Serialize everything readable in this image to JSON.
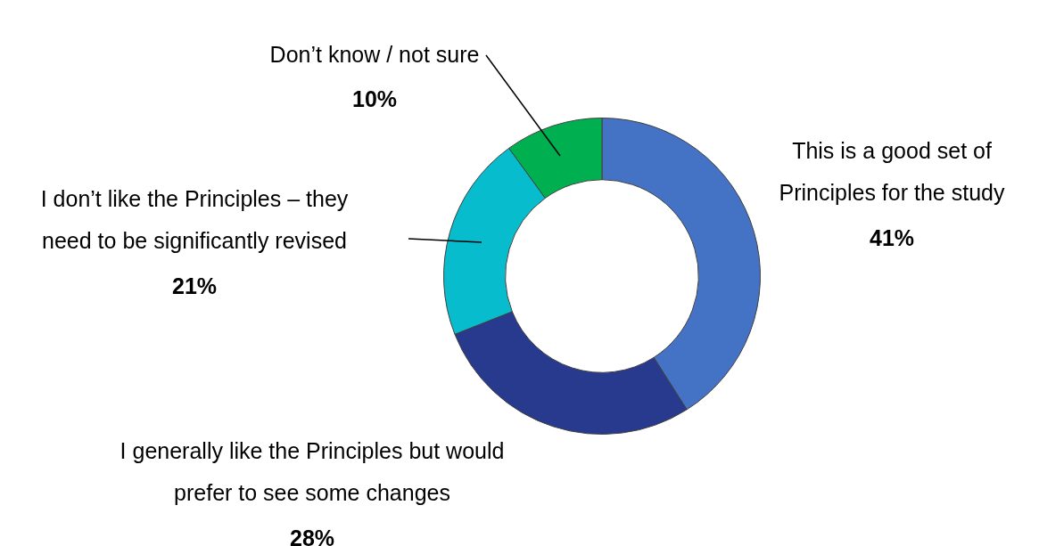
{
  "chart_data": {
    "type": "donut",
    "categories": [
      "This is a good set of Principles for the study",
      "I generally like the Principles but would prefer to see some changes",
      "I don’t like the Principles – they need to be significantly revised",
      "Don’t know / not sure"
    ],
    "values": [
      41,
      28,
      21,
      10
    ],
    "colors": [
      "#4472c4",
      "#283a8e",
      "#07bccc",
      "#00b050"
    ],
    "value_labels": [
      "41%",
      "28%",
      "21%",
      "10%"
    ],
    "legend": false
  }
}
